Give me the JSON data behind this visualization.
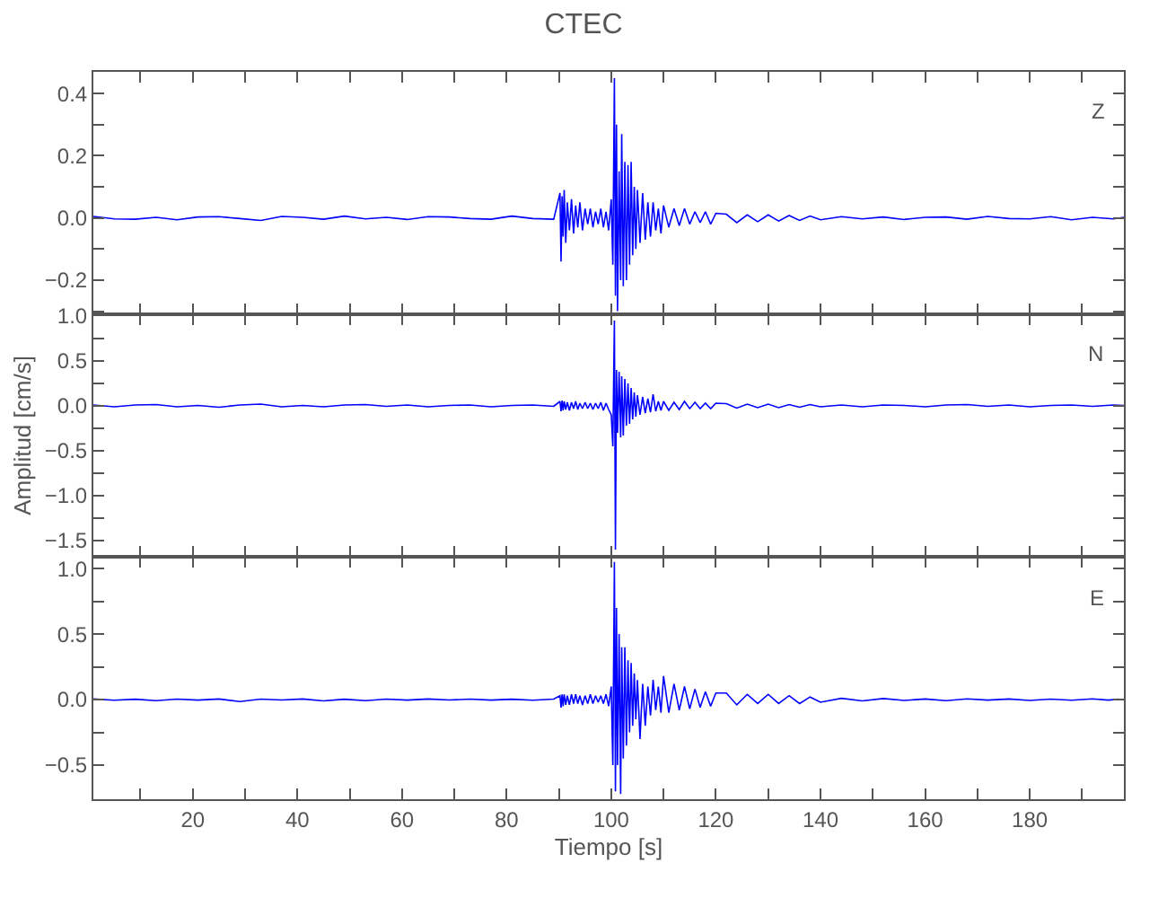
{
  "chart_data": [
    {
      "type": "line",
      "title": "CTEC",
      "annotations": [
        "Z"
      ],
      "color": "#0000ff",
      "tick_labels": "y",
      "xlim": [
        1,
        198
      ],
      "xticks": [
        {
          "value": 10,
          "label": null
        },
        20,
        {
          "value": 30,
          "label": null
        },
        40,
        {
          "value": 50,
          "label": null
        },
        60,
        {
          "value": 70,
          "label": null
        },
        80,
        {
          "value": 90,
          "label": null
        },
        100,
        {
          "value": 110,
          "label": null
        },
        120,
        {
          "value": 130,
          "label": null
        },
        140,
        {
          "value": 150,
          "label": null
        },
        160,
        {
          "value": 170,
          "label": null
        },
        180,
        {
          "value": 190,
          "label": null
        }
      ],
      "ylim": [
        -0.31,
        0.47
      ],
      "yticks": [
        {
          "value": -0.3,
          "label": null
        },
        {
          "value": -0.2,
          "label": "−0.2"
        },
        {
          "value": -0.1,
          "label": null
        },
        {
          "value": 0,
          "label": "0.0"
        },
        {
          "value": 0.1,
          "label": null
        },
        {
          "value": 0.2,
          "label": "0.2"
        },
        {
          "value": 0.3,
          "label": null
        },
        {
          "value": 0.4,
          "label": "0.4"
        }
      ],
      "x": [
        1,
        5,
        9,
        13,
        17,
        21,
        25,
        29,
        33,
        37,
        41,
        45,
        49,
        53,
        57,
        61,
        65,
        69,
        73,
        77,
        81,
        85,
        89,
        90.2,
        90.4,
        90.6,
        90.8,
        91,
        91.3,
        91.6,
        92,
        92.4,
        92.8,
        93.2,
        93.6,
        94,
        94.5,
        95,
        95.5,
        96,
        96.5,
        97,
        97.5,
        98,
        98.5,
        99,
        99.5,
        100,
        100.3,
        100.6,
        100.8,
        101,
        101.2,
        101.5,
        101.8,
        102,
        102.3,
        102.6,
        102.9,
        103.2,
        103.5,
        103.8,
        104.1,
        104.4,
        104.7,
        105,
        105.5,
        106,
        106.5,
        107,
        107.5,
        108,
        108.5,
        109,
        109.5,
        110,
        111,
        112,
        113,
        114,
        115,
        116,
        117,
        118,
        119,
        120,
        122,
        124,
        126,
        128,
        130,
        132,
        134,
        136,
        138,
        140,
        144,
        148,
        152,
        156,
        160,
        164,
        168,
        172,
        176,
        180,
        184,
        188,
        192,
        196,
        198
      ],
      "values": [
        0.005,
        -0.003,
        -0.004,
        0.002,
        -0.006,
        0.003,
        0.004,
        -0.002,
        -0.008,
        0.005,
        0.002,
        -0.004,
        0.006,
        -0.003,
        0.002,
        -0.005,
        0.004,
        0.003,
        -0.002,
        -0.004,
        0.006,
        -0.002,
        -0.004,
        0.08,
        -0.14,
        0.07,
        -0.06,
        0.09,
        -0.08,
        0.05,
        -0.04,
        0.06,
        -0.05,
        0.04,
        -0.03,
        0.05,
        -0.04,
        0.03,
        -0.02,
        0.03,
        -0.03,
        0.02,
        -0.02,
        0.03,
        -0.03,
        0.02,
        -0.04,
        0.06,
        -0.15,
        0.45,
        -0.25,
        0.3,
        -0.3,
        0.15,
        -0.2,
        0.27,
        -0.22,
        0.18,
        -0.2,
        0.17,
        -0.15,
        0.18,
        -0.12,
        0.1,
        -0.1,
        0.09,
        -0.08,
        0.08,
        -0.07,
        0.05,
        -0.06,
        0.05,
        -0.04,
        0.03,
        -0.05,
        0.04,
        -0.03,
        0.03,
        -0.025,
        0.03,
        -0.02,
        0.02,
        -0.015,
        0.02,
        -0.02,
        0.015,
        0.012,
        -0.015,
        0.01,
        -0.012,
        0.01,
        -0.01,
        0.008,
        -0.008,
        0.006,
        -0.006,
        0.004,
        -0.003,
        0.003,
        -0.005,
        0.002,
        0.003,
        -0.004,
        0.005,
        -0.002,
        -0.003,
        0.004,
        -0.006,
        0.002,
        -0.003,
        0.002
      ]
    },
    {
      "type": "line",
      "ylabel": "Amplitud [cm/s]",
      "annotations": [
        "N"
      ],
      "color": "#0000ff",
      "tick_labels": "y",
      "xlim": [
        1,
        198
      ],
      "xticks": [
        {
          "value": 10,
          "label": null
        },
        20,
        {
          "value": 30,
          "label": null
        },
        40,
        {
          "value": 50,
          "label": null
        },
        60,
        {
          "value": 70,
          "label": null
        },
        80,
        {
          "value": 90,
          "label": null
        },
        100,
        {
          "value": 110,
          "label": null
        },
        120,
        {
          "value": 130,
          "label": null
        },
        140,
        {
          "value": 150,
          "label": null
        },
        160,
        {
          "value": 170,
          "label": null
        },
        180,
        {
          "value": 190,
          "label": null
        }
      ],
      "ylim": [
        -1.68,
        1.02
      ],
      "yticks": [
        {
          "value": -1.5,
          "label": "−1.5"
        },
        {
          "value": -1.25,
          "label": null
        },
        {
          "value": -1,
          "label": "−1.0"
        },
        {
          "value": -0.75,
          "label": null
        },
        {
          "value": -0.5,
          "label": "−0.5"
        },
        {
          "value": -0.25,
          "label": null
        },
        {
          "value": 0,
          "label": "0.0"
        },
        {
          "value": 0.25,
          "label": null
        },
        {
          "value": 0.5,
          "label": "0.5"
        },
        {
          "value": 0.75,
          "label": null
        },
        {
          "value": 1,
          "label": "1.0"
        }
      ],
      "x": [
        1,
        5,
        9,
        13,
        17,
        21,
        25,
        29,
        33,
        37,
        41,
        45,
        49,
        53,
        57,
        61,
        65,
        69,
        73,
        77,
        81,
        85,
        89,
        90.2,
        90.4,
        90.6,
        90.8,
        91,
        91.3,
        91.6,
        92,
        92.4,
        92.8,
        93.2,
        93.6,
        94,
        94.5,
        95,
        95.5,
        96,
        96.5,
        97,
        97.5,
        98,
        98.5,
        99,
        99.5,
        100,
        100.3,
        100.6,
        100.8,
        101,
        101.2,
        101.5,
        101.8,
        102,
        102.3,
        102.6,
        102.9,
        103.2,
        103.5,
        103.8,
        104.1,
        104.4,
        104.7,
        105,
        105.5,
        106,
        106.5,
        107,
        107.5,
        108,
        108.5,
        109,
        109.5,
        110,
        111,
        112,
        113,
        114,
        115,
        116,
        117,
        118,
        119,
        120,
        122,
        124,
        126,
        128,
        130,
        132,
        134,
        136,
        138,
        140,
        144,
        148,
        152,
        156,
        160,
        164,
        168,
        172,
        176,
        180,
        184,
        188,
        192,
        196,
        198
      ],
      "values": [
        0.01,
        -0.01,
        0.01,
        0.015,
        -0.01,
        0.005,
        -0.015,
        0.01,
        0.02,
        -0.01,
        0.005,
        -0.01,
        0.01,
        0.015,
        -0.005,
        0.01,
        -0.01,
        0.005,
        0.01,
        -0.01,
        0.005,
        0.01,
        -0.005,
        0.05,
        -0.06,
        0.06,
        -0.05,
        0.05,
        -0.04,
        0.04,
        -0.05,
        0.04,
        -0.03,
        0.05,
        -0.04,
        0.03,
        -0.03,
        0.04,
        -0.03,
        0.03,
        -0.04,
        0.03,
        -0.03,
        0.04,
        -0.05,
        0.03,
        -0.04,
        -0.1,
        -0.45,
        0.95,
        -1.6,
        0.4,
        -0.3,
        0.38,
        -0.35,
        0.33,
        -0.33,
        0.3,
        -0.22,
        0.25,
        -0.2,
        0.2,
        -0.15,
        0.15,
        -0.12,
        0.12,
        -0.1,
        0.1,
        -0.08,
        0.08,
        -0.07,
        0.13,
        -0.06,
        0.05,
        -0.05,
        0.05,
        -0.05,
        0.04,
        -0.04,
        0.05,
        -0.03,
        0.04,
        -0.03,
        0.03,
        -0.03,
        0.03,
        0.025,
        -0.025,
        0.02,
        -0.02,
        0.02,
        -0.02,
        0.015,
        -0.015,
        0.015,
        -0.01,
        0.01,
        -0.01,
        0.01,
        0.005,
        -0.01,
        0.01,
        0.015,
        -0.005,
        0.01,
        -0.01,
        0.005,
        0.01,
        -0.005,
        0.01,
        0.005
      ]
    },
    {
      "type": "line",
      "xlabel": "Tiempo [s]",
      "annotations": [
        "E"
      ],
      "color": "#0000ff",
      "xlim": [
        1,
        198
      ],
      "xticks": [
        {
          "value": 10,
          "label": null
        },
        20,
        {
          "value": 30,
          "label": null
        },
        40,
        {
          "value": 50,
          "label": null
        },
        60,
        {
          "value": 70,
          "label": null
        },
        80,
        {
          "value": 90,
          "label": null
        },
        100,
        {
          "value": 110,
          "label": null
        },
        120,
        {
          "value": 130,
          "label": null
        },
        140,
        {
          "value": 150,
          "label": null
        },
        160,
        {
          "value": 170,
          "label": null
        },
        180,
        {
          "value": 190,
          "label": null
        }
      ],
      "ylim": [
        -0.76,
        1.09
      ],
      "yticks": [
        {
          "value": -0.75,
          "label": null
        },
        {
          "value": -0.5,
          "label": "−0.5"
        },
        {
          "value": -0.25,
          "label": null
        },
        {
          "value": 0,
          "label": "0.0"
        },
        {
          "value": 0.25,
          "label": null
        },
        {
          "value": 0.5,
          "label": "0.5"
        },
        {
          "value": 0.75,
          "label": null
        },
        {
          "value": 1,
          "label": "1.0"
        }
      ],
      "x": [
        1,
        5,
        9,
        13,
        17,
        21,
        25,
        29,
        33,
        37,
        41,
        45,
        49,
        53,
        57,
        61,
        65,
        69,
        73,
        77,
        81,
        85,
        89,
        90.2,
        90.4,
        90.6,
        90.8,
        91,
        91.3,
        91.6,
        92,
        92.4,
        92.8,
        93.2,
        93.6,
        94,
        94.5,
        95,
        95.5,
        96,
        96.5,
        97,
        97.5,
        98,
        98.5,
        99,
        99.5,
        100,
        100.3,
        100.6,
        100.8,
        101,
        101.2,
        101.5,
        101.8,
        102,
        102.3,
        102.6,
        102.9,
        103.2,
        103.5,
        103.8,
        104.1,
        104.4,
        104.7,
        105,
        105.5,
        106,
        106.5,
        107,
        107.5,
        108,
        108.5,
        109,
        109.5,
        110,
        111,
        112,
        113,
        114,
        115,
        116,
        117,
        118,
        119,
        120,
        122,
        124,
        126,
        128,
        130,
        132,
        134,
        136,
        138,
        140,
        144,
        148,
        152,
        156,
        160,
        164,
        168,
        172,
        176,
        180,
        184,
        188,
        192,
        195,
        197
      ],
      "values": [
        0.005,
        -0.005,
        0.003,
        -0.008,
        0.004,
        -0.004,
        0.005,
        -0.015,
        0.004,
        -0.003,
        0.005,
        -0.01,
        0.003,
        -0.008,
        0.004,
        -0.004,
        0.005,
        -0.003,
        0.004,
        -0.004,
        0.003,
        -0.005,
        0.004,
        0.03,
        -0.06,
        0.04,
        -0.05,
        0.04,
        -0.04,
        0.03,
        -0.04,
        0.04,
        -0.03,
        0.04,
        -0.03,
        0.03,
        -0.04,
        0.03,
        -0.03,
        0.04,
        -0.03,
        0.03,
        -0.02,
        0.03,
        -0.03,
        0.04,
        -0.05,
        0.1,
        -0.5,
        1.05,
        -0.7,
        0.7,
        -0.5,
        0.5,
        -0.72,
        0.4,
        -0.45,
        0.4,
        -0.35,
        0.3,
        -0.25,
        0.28,
        -0.2,
        0.2,
        -0.15,
        0.15,
        -0.3,
        0.12,
        -0.2,
        0.1,
        -0.12,
        0.15,
        -0.08,
        0.1,
        -0.1,
        0.18,
        -0.1,
        0.12,
        -0.08,
        0.1,
        -0.07,
        0.08,
        -0.06,
        0.06,
        -0.05,
        0.05,
        0.05,
        -0.04,
        0.04,
        -0.03,
        0.04,
        -0.03,
        0.03,
        -0.03,
        0.02,
        -0.02,
        0.01,
        -0.01,
        0.008,
        -0.006,
        0.005,
        -0.008,
        0.006,
        -0.004,
        0.005,
        -0.006,
        0.004,
        -0.005,
        0.006,
        -0.004,
        0.003
      ]
    }
  ]
}
